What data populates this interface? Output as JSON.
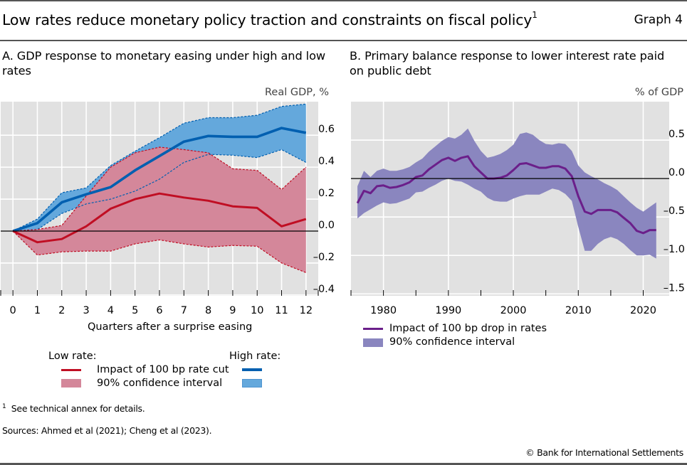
{
  "header": {
    "title": "Low rates reduce monetary policy traction and constraints on fiscal policy",
    "title_footnote_marker": "1",
    "graph_number": "Graph 4"
  },
  "footer": {
    "footnote_marker": "1",
    "footnote": "See technical annex for details.",
    "sources": "Sources: Ahmed et al (2021); Cheng et al (2023).",
    "copyright": "© Bank for International Settlements"
  },
  "colors": {
    "low_rate_line": "#c00e23",
    "low_rate_ci": "#d4879a",
    "high_rate_line": "#005fb0",
    "high_rate_ci": "#64a8dc",
    "pb_line": "#6b1f8a",
    "pb_ci": "#8a86bf",
    "plot_bg": "#e1e1e1"
  },
  "chart_data": [
    {
      "type": "line",
      "panel": "A",
      "title": "A. GDP response to monetary easing under high and low rates",
      "xlabel": "Quarters after a surprise easing",
      "ylabel": "Real GDP, %",
      "y_axis_side": "right",
      "x": [
        0,
        1,
        2,
        3,
        4,
        5,
        6,
        7,
        8,
        9,
        10,
        11,
        12
      ],
      "xlim": [
        -0.5,
        12.5
      ],
      "ylim": [
        -0.4,
        0.8
      ],
      "y_ticks": [
        0.6,
        0.4,
        0.2,
        0.0,
        -0.2,
        -0.4
      ],
      "y_tick_labels": [
        "0.6",
        "0.4",
        "0.2",
        "0.0",
        "–0.2",
        "–0.4"
      ],
      "x_tick_labels": [
        "0",
        "1",
        "2",
        "3",
        "4",
        "5",
        "6",
        "7",
        "8",
        "9",
        "10",
        "11",
        "12"
      ],
      "grid": true,
      "legend": {
        "placement": "bottom",
        "low_group_label": "Low rate:",
        "high_group_label": "High rate:",
        "line_label": "Impact of 100 bp rate cut",
        "ci_label": "90% confidence interval"
      },
      "series": [
        {
          "name": "Low rate: Impact of 100 bp rate cut",
          "group": "low",
          "values": [
            0.0,
            -0.07,
            -0.05,
            0.03,
            0.14,
            0.2,
            0.235,
            0.21,
            0.19,
            0.155,
            0.145,
            0.03,
            0.075
          ],
          "ci_lower": [
            0.0,
            -0.15,
            -0.13,
            -0.125,
            -0.125,
            -0.08,
            -0.055,
            -0.08,
            -0.1,
            -0.09,
            -0.095,
            -0.2,
            -0.26
          ],
          "ci_upper": [
            0.0,
            0.01,
            0.035,
            0.22,
            0.4,
            0.49,
            0.525,
            0.51,
            0.49,
            0.39,
            0.38,
            0.26,
            0.4
          ]
        },
        {
          "name": "High rate: Impact of 100 bp rate cut",
          "group": "high",
          "values": [
            0.0,
            0.05,
            0.18,
            0.23,
            0.275,
            0.38,
            0.47,
            0.56,
            0.595,
            0.59,
            0.59,
            0.645,
            0.615
          ],
          "ci_lower": [
            0.0,
            0.01,
            0.11,
            0.17,
            0.2,
            0.25,
            0.325,
            0.43,
            0.48,
            0.475,
            0.46,
            0.51,
            0.43
          ],
          "ci_upper": [
            0.0,
            0.075,
            0.24,
            0.27,
            0.41,
            0.5,
            0.585,
            0.675,
            0.71,
            0.71,
            0.725,
            0.78,
            0.795
          ]
        }
      ]
    },
    {
      "type": "line",
      "panel": "B",
      "title": "B. Primary balance response to lower interest rate paid on public debt",
      "xlabel": "",
      "ylabel": "% of GDP",
      "y_axis_side": "right",
      "xlim": [
        1975,
        2024
      ],
      "ylim": [
        -1.5,
        1.0
      ],
      "y_ticks": [
        0.5,
        0.0,
        -0.5,
        -1.0,
        -1.5
      ],
      "y_tick_labels": [
        "0.5",
        "0.0",
        "–0.5",
        "–1.0",
        "–1.5"
      ],
      "x_ticks": [
        1980,
        1990,
        2000,
        2010,
        2020
      ],
      "x_tick_labels": [
        "1980",
        "1990",
        "2000",
        "2010",
        "2020"
      ],
      "grid": true,
      "legend": {
        "placement": "bottom-left",
        "line_label": "Impact of 100 bp drop in rates",
        "ci_label": "90% confidence interval"
      },
      "x": [
        1976,
        1977,
        1978,
        1979,
        1980,
        1981,
        1982,
        1983,
        1984,
        1985,
        1986,
        1987,
        1988,
        1989,
        1990,
        1991,
        1992,
        1993,
        1994,
        1995,
        1996,
        1997,
        1998,
        1999,
        2000,
        2001,
        2002,
        2003,
        2004,
        2005,
        2006,
        2007,
        2008,
        2009,
        2010,
        2011,
        2012,
        2013,
        2014,
        2015,
        2016,
        2017,
        2018,
        2019,
        2020,
        2021,
        2022
      ],
      "series": [
        {
          "name": "Impact of 100 bp drop in rates",
          "values": [
            -0.32,
            -0.16,
            -0.19,
            -0.1,
            -0.09,
            -0.12,
            -0.11,
            -0.085,
            -0.05,
            0.02,
            0.04,
            0.12,
            0.18,
            0.24,
            0.27,
            0.23,
            0.27,
            0.29,
            0.16,
            0.08,
            0.0,
            0.0,
            0.01,
            0.04,
            0.11,
            0.19,
            0.2,
            0.17,
            0.14,
            0.14,
            0.16,
            0.16,
            0.13,
            0.03,
            -0.23,
            -0.43,
            -0.46,
            -0.41,
            -0.41,
            -0.41,
            -0.44,
            -0.51,
            -0.58,
            -0.68,
            -0.71,
            -0.67,
            -0.67
          ],
          "ci_lower": [
            -0.52,
            -0.45,
            -0.4,
            -0.35,
            -0.31,
            -0.33,
            -0.32,
            -0.29,
            -0.26,
            -0.18,
            -0.17,
            -0.12,
            -0.08,
            -0.03,
            0.0,
            -0.03,
            -0.04,
            -0.08,
            -0.13,
            -0.17,
            -0.25,
            -0.29,
            -0.3,
            -0.3,
            -0.26,
            -0.23,
            -0.21,
            -0.21,
            -0.21,
            -0.17,
            -0.13,
            -0.15,
            -0.2,
            -0.29,
            -0.63,
            -0.94,
            -0.94,
            -0.85,
            -0.79,
            -0.76,
            -0.79,
            -0.85,
            -0.93,
            -1.0,
            -1.0,
            -0.99,
            -1.04
          ],
          "ci_upper": [
            -0.1,
            0.1,
            0.02,
            0.1,
            0.13,
            0.1,
            0.1,
            0.12,
            0.15,
            0.21,
            0.26,
            0.35,
            0.42,
            0.49,
            0.54,
            0.52,
            0.57,
            0.65,
            0.49,
            0.36,
            0.27,
            0.29,
            0.32,
            0.37,
            0.44,
            0.58,
            0.6,
            0.57,
            0.5,
            0.45,
            0.44,
            0.46,
            0.45,
            0.36,
            0.17,
            0.08,
            0.03,
            -0.01,
            -0.06,
            -0.1,
            -0.15,
            -0.23,
            -0.31,
            -0.38,
            -0.43,
            -0.37,
            -0.31
          ]
        }
      ]
    }
  ]
}
